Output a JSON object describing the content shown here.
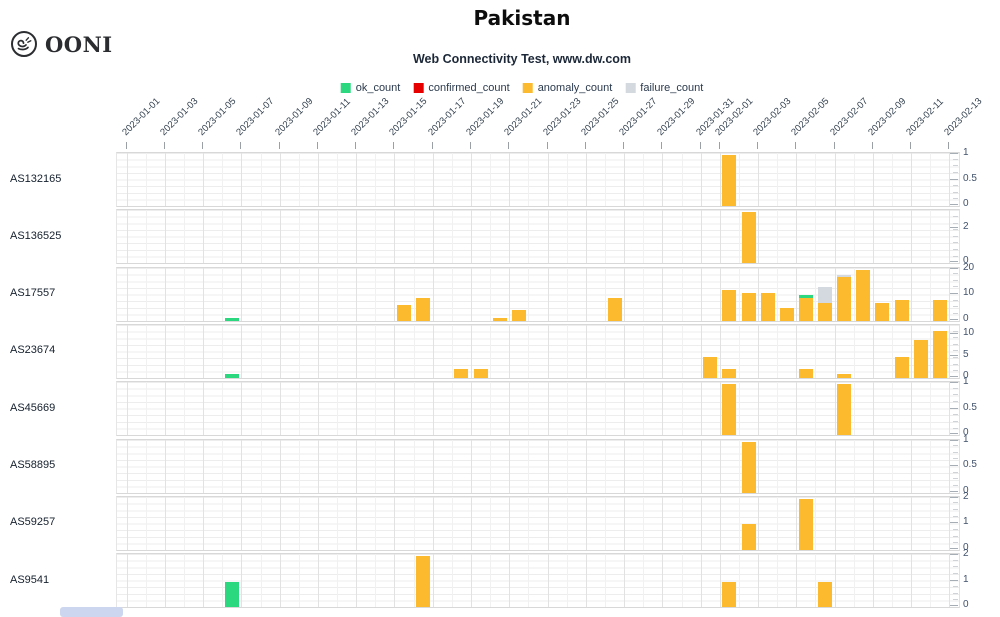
{
  "header": {
    "logo_text": "OONI",
    "title": "Pakistan",
    "subtitle": "Web Connectivity Test, www.dw.com"
  },
  "chart_data": {
    "type": "bar",
    "layout": "small_multiples_stacked_bars_per_asn",
    "x_range": [
      "2023-01-01",
      "2023-02-13"
    ],
    "days": 44,
    "grid": true,
    "legend_position": "top_center",
    "x_ticks": [
      {
        "label": "2023-01-01",
        "day": 1
      },
      {
        "label": "2023-01-03",
        "day": 3
      },
      {
        "label": "2023-01-05",
        "day": 5
      },
      {
        "label": "2023-01-07",
        "day": 7
      },
      {
        "label": "2023-01-09",
        "day": 9
      },
      {
        "label": "2023-01-11",
        "day": 11
      },
      {
        "label": "2023-01-13",
        "day": 13
      },
      {
        "label": "2023-01-15",
        "day": 15
      },
      {
        "label": "2023-01-17",
        "day": 17
      },
      {
        "label": "2023-01-19",
        "day": 19
      },
      {
        "label": "2023-01-21",
        "day": 21
      },
      {
        "label": "2023-01-23",
        "day": 23
      },
      {
        "label": "2023-01-25",
        "day": 25
      },
      {
        "label": "2023-01-27",
        "day": 27
      },
      {
        "label": "2023-01-29",
        "day": 29
      },
      {
        "label": "2023-01-31",
        "day": 31
      },
      {
        "label": "2023-02-01",
        "day": 32
      },
      {
        "label": "2023-02-03",
        "day": 34
      },
      {
        "label": "2023-02-05",
        "day": 36
      },
      {
        "label": "2023-02-07",
        "day": 38
      },
      {
        "label": "2023-02-09",
        "day": 40
      },
      {
        "label": "2023-02-11",
        "day": 42
      },
      {
        "label": "2023-02-13",
        "day": 44
      }
    ],
    "series": [
      {
        "name": "ok_count",
        "color": "#2bd77f"
      },
      {
        "name": "confirmed_count",
        "color": "#e60000"
      },
      {
        "name": "anomaly_count",
        "color": "#fcbb2e"
      },
      {
        "name": "failure_count",
        "color": "#d4d9e0"
      }
    ],
    "rows": [
      {
        "asn": "AS132165",
        "ymax": 1,
        "yticks": [
          1,
          0.5,
          0
        ],
        "bars": [
          {
            "date": "2023-02-01",
            "day": 32,
            "segments": [
              {
                "series": "anomaly_count",
                "value": 1
              }
            ]
          }
        ]
      },
      {
        "asn": "AS136525",
        "ymax": 3,
        "yticks": [
          2,
          0
        ],
        "bars": [
          {
            "date": "2023-02-02",
            "day": 33,
            "segments": [
              {
                "series": "anomaly_count",
                "value": 3
              }
            ]
          }
        ]
      },
      {
        "asn": "AS17557",
        "ymax": 20,
        "yticks": [
          20,
          10,
          0
        ],
        "bars": [
          {
            "date": "2023-01-06",
            "day": 6,
            "segments": [
              {
                "series": "ok_count",
                "value": 1
              }
            ]
          },
          {
            "date": "2023-01-15",
            "day": 15,
            "segments": [
              {
                "series": "anomaly_count",
                "value": 6
              }
            ]
          },
          {
            "date": "2023-01-16",
            "day": 16,
            "segments": [
              {
                "series": "anomaly_count",
                "value": 9
              }
            ]
          },
          {
            "date": "2023-01-20",
            "day": 20,
            "segments": [
              {
                "series": "anomaly_count",
                "value": 1
              }
            ]
          },
          {
            "date": "2023-01-21",
            "day": 21,
            "segments": [
              {
                "series": "anomaly_count",
                "value": 4
              }
            ]
          },
          {
            "date": "2023-01-26",
            "day": 26,
            "segments": [
              {
                "series": "anomaly_count",
                "value": 9
              }
            ]
          },
          {
            "date": "2023-02-01",
            "day": 32,
            "segments": [
              {
                "series": "anomaly_count",
                "value": 12
              }
            ]
          },
          {
            "date": "2023-02-02",
            "day": 33,
            "segments": [
              {
                "series": "anomaly_count",
                "value": 11
              }
            ]
          },
          {
            "date": "2023-02-03",
            "day": 34,
            "segments": [
              {
                "series": "anomaly_count",
                "value": 11
              }
            ]
          },
          {
            "date": "2023-02-04",
            "day": 35,
            "segments": [
              {
                "series": "anomaly_count",
                "value": 5
              }
            ]
          },
          {
            "date": "2023-02-05",
            "day": 36,
            "segments": [
              {
                "series": "anomaly_count",
                "value": 9
              },
              {
                "series": "ok_count",
                "value": 1
              }
            ]
          },
          {
            "date": "2023-02-06",
            "day": 37,
            "segments": [
              {
                "series": "anomaly_count",
                "value": 7
              },
              {
                "series": "failure_count",
                "value": 6
              }
            ]
          },
          {
            "date": "2023-02-07",
            "day": 38,
            "segments": [
              {
                "series": "anomaly_count",
                "value": 17
              },
              {
                "series": "failure_count",
                "value": 1
              }
            ]
          },
          {
            "date": "2023-02-08",
            "day": 39,
            "segments": [
              {
                "series": "anomaly_count",
                "value": 20
              }
            ]
          },
          {
            "date": "2023-02-09",
            "day": 40,
            "segments": [
              {
                "series": "anomaly_count",
                "value": 7
              }
            ]
          },
          {
            "date": "2023-02-10",
            "day": 41,
            "segments": [
              {
                "series": "anomaly_count",
                "value": 8
              }
            ]
          },
          {
            "date": "2023-02-12",
            "day": 43,
            "segments": [
              {
                "series": "anomaly_count",
                "value": 8
              }
            ]
          }
        ]
      },
      {
        "asn": "AS23674",
        "ymax": 12,
        "yticks": [
          10,
          5,
          0
        ],
        "bars": [
          {
            "date": "2023-01-06",
            "day": 6,
            "segments": [
              {
                "series": "ok_count",
                "value": 1
              }
            ]
          },
          {
            "date": "2023-01-18",
            "day": 18,
            "segments": [
              {
                "series": "anomaly_count",
                "value": 2
              }
            ]
          },
          {
            "date": "2023-01-19",
            "day": 19,
            "segments": [
              {
                "series": "anomaly_count",
                "value": 2
              }
            ]
          },
          {
            "date": "2023-01-31",
            "day": 31,
            "segments": [
              {
                "series": "anomaly_count",
                "value": 5
              }
            ]
          },
          {
            "date": "2023-02-01",
            "day": 32,
            "segments": [
              {
                "series": "anomaly_count",
                "value": 2
              }
            ]
          },
          {
            "date": "2023-02-05",
            "day": 36,
            "segments": [
              {
                "series": "anomaly_count",
                "value": 2
              }
            ]
          },
          {
            "date": "2023-02-07",
            "day": 38,
            "segments": [
              {
                "series": "anomaly_count",
                "value": 1
              }
            ]
          },
          {
            "date": "2023-02-10",
            "day": 41,
            "segments": [
              {
                "series": "anomaly_count",
                "value": 5
              }
            ]
          },
          {
            "date": "2023-02-11",
            "day": 42,
            "segments": [
              {
                "series": "anomaly_count",
                "value": 9
              }
            ]
          },
          {
            "date": "2023-02-12",
            "day": 43,
            "segments": [
              {
                "series": "anomaly_count",
                "value": 11
              }
            ]
          }
        ]
      },
      {
        "asn": "AS45669",
        "ymax": 1,
        "yticks": [
          1,
          0.5,
          0
        ],
        "bars": [
          {
            "date": "2023-02-01",
            "day": 32,
            "segments": [
              {
                "series": "anomaly_count",
                "value": 1
              }
            ]
          },
          {
            "date": "2023-02-07",
            "day": 38,
            "segments": [
              {
                "series": "anomaly_count",
                "value": 1
              }
            ]
          }
        ]
      },
      {
        "asn": "AS58895",
        "ymax": 1,
        "yticks": [
          1,
          0.5,
          0
        ],
        "bars": [
          {
            "date": "2023-02-02",
            "day": 33,
            "segments": [
              {
                "series": "anomaly_count",
                "value": 1
              }
            ]
          }
        ]
      },
      {
        "asn": "AS59257",
        "ymax": 2,
        "yticks": [
          2,
          1,
          0
        ],
        "bars": [
          {
            "date": "2023-02-02",
            "day": 33,
            "segments": [
              {
                "series": "anomaly_count",
                "value": 1
              }
            ]
          },
          {
            "date": "2023-02-05",
            "day": 36,
            "segments": [
              {
                "series": "anomaly_count",
                "value": 2
              }
            ]
          }
        ]
      },
      {
        "asn": "AS9541",
        "ymax": 2,
        "yticks": [
          2,
          1,
          0
        ],
        "bars": [
          {
            "date": "2023-01-06",
            "day": 6,
            "segments": [
              {
                "series": "ok_count",
                "value": 1
              }
            ]
          },
          {
            "date": "2023-01-16",
            "day": 16,
            "segments": [
              {
                "series": "anomaly_count",
                "value": 2
              }
            ]
          },
          {
            "date": "2023-02-01",
            "day": 32,
            "segments": [
              {
                "series": "anomaly_count",
                "value": 1
              }
            ]
          },
          {
            "date": "2023-02-06",
            "day": 37,
            "segments": [
              {
                "series": "anomaly_count",
                "value": 1
              }
            ]
          }
        ]
      }
    ]
  }
}
